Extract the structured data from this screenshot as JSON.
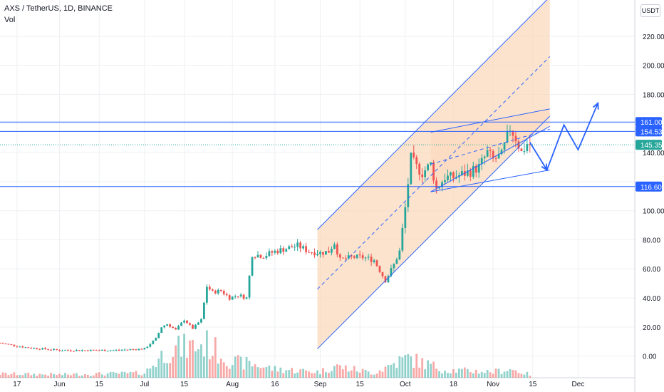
{
  "header": {
    "title": "AXS / TetherUS, 1D, BINANCE",
    "volume_label": "Vol",
    "currency": "USDT"
  },
  "colors": {
    "up": "#26a69a",
    "down": "#ef5350",
    "drawing": "#2962ff",
    "channel_fill": "#fbd9bd",
    "current_price": "#26a69a"
  },
  "chart_data": {
    "type": "candlestick",
    "symbol": "AXS / TetherUS",
    "interval": "1D",
    "exchange": "BINANCE",
    "ylim": [
      -9,
      241
    ],
    "y_ticks": [
      0,
      20,
      40,
      60,
      80,
      100,
      120,
      140,
      160,
      180,
      200,
      220
    ],
    "y_tick_labels": [
      "0.00",
      "20.00",
      "40.00",
      "60.00",
      "80.00",
      "100.00",
      "120.00",
      "140.00",
      "160.00",
      "180.00",
      "200.00",
      "220.00"
    ],
    "x_start_date": "2021-05-11",
    "x_end_date": "2021-12-21",
    "x_ticks": [
      {
        "label": "17",
        "date": "2021-05-17"
      },
      {
        "label": "Jun",
        "date": "2021-06-01"
      },
      {
        "label": "15",
        "date": "2021-06-15"
      },
      {
        "label": "Jul",
        "date": "2021-07-01"
      },
      {
        "label": "15",
        "date": "2021-07-15"
      },
      {
        "label": "Aug",
        "date": "2021-08-01"
      },
      {
        "label": "16",
        "date": "2021-08-16"
      },
      {
        "label": "Sep",
        "date": "2021-09-01"
      },
      {
        "label": "15",
        "date": "2021-09-15"
      },
      {
        "label": "Oct",
        "date": "2021-10-01"
      },
      {
        "label": "18",
        "date": "2021-10-18"
      },
      {
        "label": "Nov",
        "date": "2021-11-01"
      },
      {
        "label": "15",
        "date": "2021-11-15"
      },
      {
        "label": "Dec",
        "date": "2021-12-01"
      }
    ],
    "price_levels": [
      {
        "value": 161.0,
        "label": "161.00"
      },
      {
        "value": 154.53,
        "label": "154.53"
      },
      {
        "value": 116.6,
        "label": "116.60"
      }
    ],
    "current_price": {
      "value": 145.35,
      "label": "145.35"
    },
    "close_anchors": [
      [
        "2021-05-11",
        9
      ],
      [
        "2021-05-20",
        6
      ],
      [
        "2021-06-01",
        4
      ],
      [
        "2021-06-20",
        4
      ],
      [
        "2021-07-01",
        5
      ],
      [
        "2021-07-05",
        12
      ],
      [
        "2021-07-07",
        20
      ],
      [
        "2021-07-09",
        22
      ],
      [
        "2021-07-12",
        18
      ],
      [
        "2021-07-15",
        25
      ],
      [
        "2021-07-18",
        19
      ],
      [
        "2021-07-21",
        25
      ],
      [
        "2021-07-23",
        48
      ],
      [
        "2021-07-25",
        44
      ],
      [
        "2021-07-28",
        45
      ],
      [
        "2021-07-31",
        40
      ],
      [
        "2021-08-03",
        42
      ],
      [
        "2021-08-06",
        40
      ],
      [
        "2021-08-08",
        70
      ],
      [
        "2021-08-12",
        69
      ],
      [
        "2021-08-16",
        72
      ],
      [
        "2021-08-20",
        74
      ],
      [
        "2021-08-24",
        76
      ],
      [
        "2021-08-28",
        72
      ],
      [
        "2021-09-01",
        71
      ],
      [
        "2021-09-04",
        72
      ],
      [
        "2021-09-06",
        78
      ],
      [
        "2021-09-08",
        66
      ],
      [
        "2021-09-12",
        68
      ],
      [
        "2021-09-16",
        68
      ],
      [
        "2021-09-20",
        66
      ],
      [
        "2021-09-24",
        52
      ],
      [
        "2021-09-27",
        63
      ],
      [
        "2021-09-29",
        72
      ],
      [
        "2021-10-01",
        102
      ],
      [
        "2021-10-03",
        136
      ],
      [
        "2021-10-05",
        130
      ],
      [
        "2021-10-07",
        126
      ],
      [
        "2021-10-10",
        132
      ],
      [
        "2021-10-12",
        115
      ],
      [
        "2021-10-15",
        123
      ],
      [
        "2021-10-18",
        123
      ],
      [
        "2021-10-21",
        125
      ],
      [
        "2021-10-24",
        127
      ],
      [
        "2021-10-27",
        130
      ],
      [
        "2021-10-30",
        140
      ],
      [
        "2021-11-01",
        135
      ],
      [
        "2021-11-04",
        138
      ],
      [
        "2021-11-07",
        157
      ],
      [
        "2021-11-09",
        150
      ],
      [
        "2021-11-11",
        140
      ],
      [
        "2021-11-13",
        146
      ],
      [
        "2021-11-14",
        145.35
      ]
    ],
    "volume_anchors": [
      [
        "2021-05-11",
        10
      ],
      [
        "2021-06-01",
        8
      ],
      [
        "2021-07-01",
        12
      ],
      [
        "2021-07-09",
        70
      ],
      [
        "2021-07-23",
        85
      ],
      [
        "2021-08-01",
        40
      ],
      [
        "2021-08-08",
        35
      ],
      [
        "2021-08-16",
        22
      ],
      [
        "2021-09-01",
        15
      ],
      [
        "2021-09-06",
        30
      ],
      [
        "2021-09-20",
        12
      ],
      [
        "2021-09-28",
        40
      ],
      [
        "2021-10-02",
        50
      ],
      [
        "2021-10-15",
        20
      ],
      [
        "2021-11-01",
        15
      ],
      [
        "2021-11-07",
        22
      ],
      [
        "2021-11-14",
        8
      ]
    ],
    "drawings": {
      "channel": {
        "lower_edge": [
          [
            "2021-08-31",
            5
          ],
          [
            "2021-11-21",
            165
          ]
        ],
        "upper_edge": [
          [
            "2021-08-31",
            87
          ],
          [
            "2021-11-21",
            247
          ]
        ],
        "mid_line": [
          [
            "2021-08-31",
            46
          ],
          [
            "2021-11-21",
            206
          ]
        ]
      },
      "triangle": {
        "upper_edge": [
          [
            "2021-10-10",
            154
          ],
          [
            "2021-11-21",
            170
          ]
        ],
        "lower_edge": [
          [
            "2021-10-10",
            113
          ],
          [
            "2021-11-21",
            158
          ]
        ],
        "mid_line": [
          [
            "2021-10-10",
            132
          ],
          [
            "2021-11-21",
            156
          ]
        ]
      },
      "lower_boundary_line": [
        [
          "2021-10-10",
          113
        ],
        [
          "2021-11-21",
          128
        ]
      ],
      "path_forecast": [
        [
          "2021-11-14",
          147
        ],
        [
          "2021-11-20",
          128
        ],
        [
          "2021-11-26",
          159
        ],
        [
          "2021-12-01",
          142
        ],
        [
          "2021-12-08",
          174
        ]
      ]
    }
  }
}
